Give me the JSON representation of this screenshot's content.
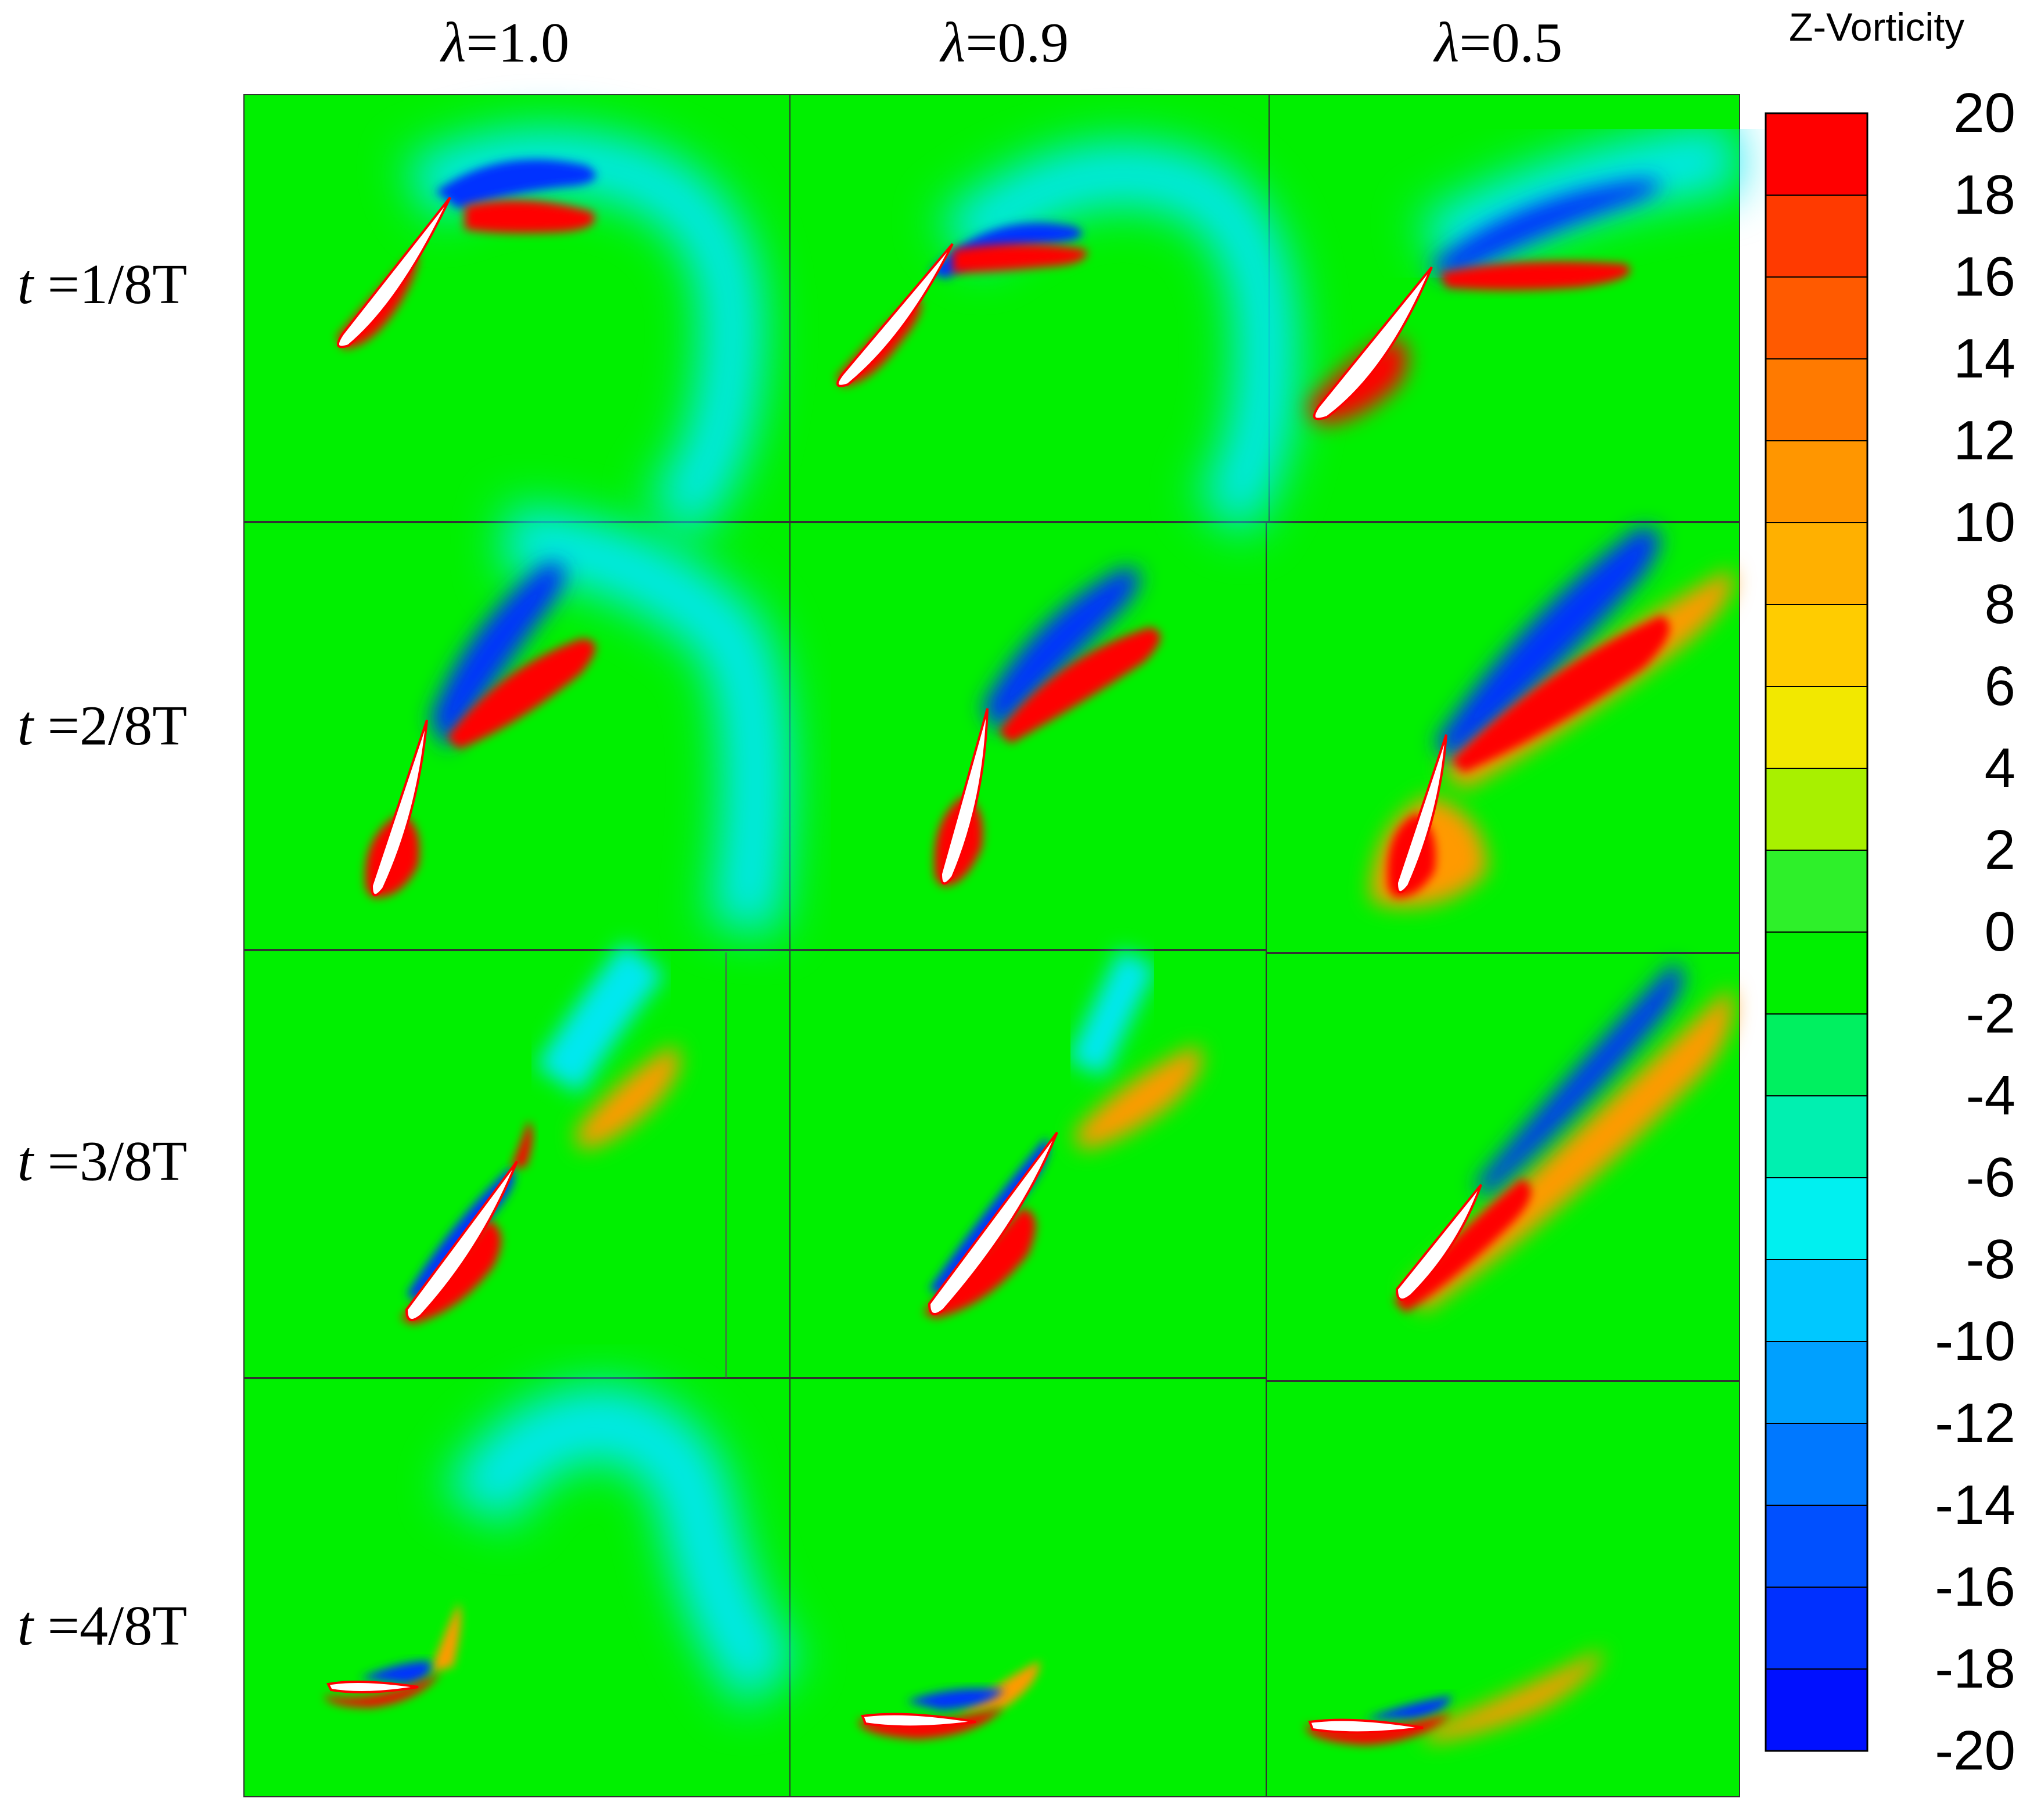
{
  "columns": [
    {
      "symbol": "λ",
      "value": "=1.0"
    },
    {
      "symbol": "λ",
      "value": "=0.9"
    },
    {
      "symbol": "λ",
      "value": "=0.5"
    }
  ],
  "rows": [
    {
      "symbol": "t",
      "value": " =1/8T"
    },
    {
      "symbol": "t",
      "value": " =2/8T"
    },
    {
      "symbol": "t",
      "value": " =3/8T"
    },
    {
      "symbol": "t",
      "value": " =4/8T"
    }
  ],
  "colorbar": {
    "title": "Z-Vorticity",
    "ticks": [
      "20",
      "18",
      "16",
      "14",
      "12",
      "10",
      "8",
      "6",
      "4",
      "2",
      "0",
      "-2",
      "-4",
      "-6",
      "-8",
      "-10",
      "-12",
      "-14",
      "-16",
      "-18",
      "-20"
    ],
    "colors": [
      "#ff0000",
      "#ff3a00",
      "#ff5a00",
      "#ff7a00",
      "#ff9600",
      "#ffb000",
      "#ffcc00",
      "#f2e800",
      "#a8f000",
      "#2ef02a",
      "#00f000",
      "#00f060",
      "#00f0b0",
      "#00f0f0",
      "#00c8ff",
      "#00a0ff",
      "#0078ff",
      "#0050ff",
      "#0030ff",
      "#0010ff"
    ]
  },
  "field_colors": {
    "background": "#00f000",
    "positive": "#ff0000",
    "positive_mid": "#ff9a00",
    "negative": "#0030ff",
    "negative_mid": "#00e8f0",
    "airfoil": "#ffffff"
  }
}
